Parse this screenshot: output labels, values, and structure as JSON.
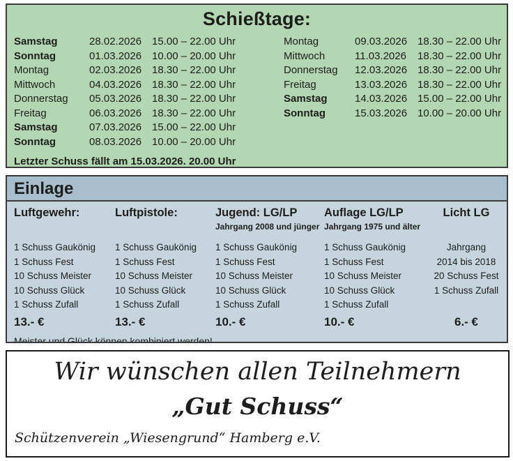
{
  "colors": {
    "green_bg": "#b2d7b2",
    "einlage_header_bg": "#a9becd",
    "einlage_body_bg": "#c6d4de",
    "border_dark": "#3a3a3a",
    "text": "#1d1d1b"
  },
  "schiesstage": {
    "title": "Schießtage:",
    "left_rows": [
      {
        "day": "Samstag",
        "date": "28.02.2026",
        "time": "15.00 – 22.00 Uhr",
        "bold": true
      },
      {
        "day": "Sonntag",
        "date": "01.03.2026",
        "time": "10.00 – 20.00 Uhr",
        "bold": true
      },
      {
        "day": "Montag",
        "date": "02.03.2026",
        "time": "18.30 – 22.00 Uhr",
        "bold": false
      },
      {
        "day": "Mittwoch",
        "date": "04.03.2026",
        "time": "18.30 – 22.00 Uhr",
        "bold": false
      },
      {
        "day": "Donnerstag",
        "date": "05.03.2026",
        "time": "18.30 – 22.00 Uhr",
        "bold": false
      },
      {
        "day": "Freitag",
        "date": "06.03.2026",
        "time": "18.30 – 22.00 Uhr",
        "bold": false
      },
      {
        "day": "Samstag",
        "date": "07.03.2026",
        "time": "15.00 – 22.00 Uhr",
        "bold": true
      },
      {
        "day": "Sonntag",
        "date": "08.03.2026",
        "time": "10.00 – 20.00 Uhr",
        "bold": true
      }
    ],
    "right_rows": [
      {
        "day": "Montag",
        "date": "09.03.2026",
        "time": "18.30 – 22.00 Uhr",
        "bold": false
      },
      {
        "day": "Mittwoch",
        "date": "11.03.2026",
        "time": "18.30 – 22.00 Uhr",
        "bold": false
      },
      {
        "day": "Donnerstag",
        "date": "12.03.2026",
        "time": "18.30 – 22.00 Uhr",
        "bold": false
      },
      {
        "day": "Freitag",
        "date": "13.03.2026",
        "time": "18.30 – 22.00 Uhr",
        "bold": false
      },
      {
        "day": "Samstag",
        "date": "14.03.2026",
        "time": "15.00 – 22.00 Uhr",
        "bold": true
      },
      {
        "day": "Sonntag",
        "date": "15.03.2026",
        "time": "10.00 – 20.00 Uhr",
        "bold": true
      }
    ],
    "footer": "Letzter Schuss fällt am 15.03.2026. 20.00 Uhr"
  },
  "einlage": {
    "title": "Einlage",
    "columns": [
      {
        "header": "Luftgewehr:",
        "subtitle": "",
        "items": [
          "1 Schuss Gaukönig",
          "1 Schuss Fest",
          "10 Schuss Meister",
          "10 Schuss Glück",
          "1 Schuss Zufall"
        ],
        "price": "13.- €"
      },
      {
        "header": "Luftpistole:",
        "subtitle": "",
        "items": [
          "1 Schuss Gaukönig",
          "1 Schuss Fest",
          "10 Schuss Meister",
          "10 Schuss Glück",
          "1 Schuss Zufall"
        ],
        "price": "13.- €"
      },
      {
        "header": "Jugend: LG/LP",
        "subtitle": "Jahrgang 2008 und jünger",
        "items": [
          "1 Schuss Gaukönig",
          "1 Schuss Fest",
          "10 Schuss Meister",
          "10 Schuss Glück",
          "1 Schuss Zufall"
        ],
        "price": "10.- €"
      },
      {
        "header": "Auflage LG/LP",
        "subtitle": "Jahrgang 1975 und älter",
        "items": [
          "1 Schuss Gaukönig",
          "1 Schuss Fest",
          "10 Schuss Meister",
          "10 Schuss Glück",
          "1 Schuss Zufall"
        ],
        "price": "10.- €"
      },
      {
        "header": "Licht LG",
        "subtitle": "",
        "items": [
          "Jahrgang",
          "2014 bis 2018",
          "20 Schuss Fest",
          "1 Schuss Zufall"
        ],
        "price": "6.- €"
      }
    ],
    "note": "Meister und Glück können kombiniert werden!"
  },
  "wish_box": {
    "line1": "Wir wünschen allen Teilnehmern",
    "line2": "„Gut Schuss“",
    "club": "Schützenverein „Wiesengrund“ Hamberg e.V."
  }
}
